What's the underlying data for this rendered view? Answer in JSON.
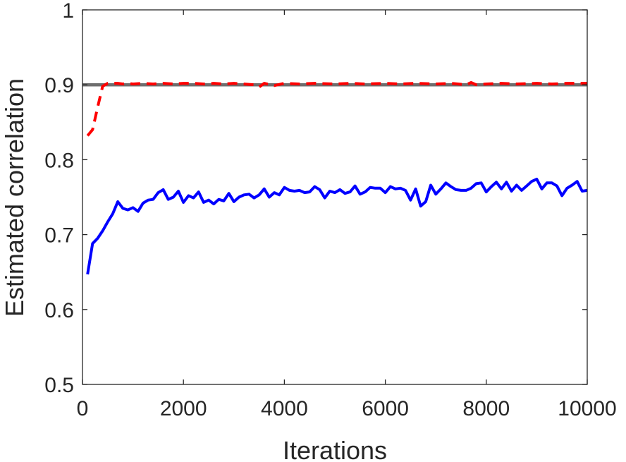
{
  "chart_data": {
    "type": "line",
    "title": "",
    "xlabel": "Iterations",
    "ylabel": "Estimated correlation",
    "xlim": [
      0,
      10000
    ],
    "ylim": [
      0.5,
      1.0
    ],
    "xticks": [
      0,
      2000,
      4000,
      6000,
      8000,
      10000
    ],
    "xtick_labels": [
      "0",
      "2000",
      "4000",
      "6000",
      "8000",
      "10000"
    ],
    "yticks": [
      0.5,
      0.6,
      0.7,
      0.8,
      0.9,
      1.0
    ],
    "ytick_labels": [
      "0.5",
      "0.6",
      "0.7",
      "0.8",
      "0.9",
      "1"
    ],
    "grid": false,
    "reference_line": {
      "y": 0.9,
      "color": "#6e6e6e"
    },
    "series": [
      {
        "color": "#ff0000",
        "style": "dashed",
        "x": [
          100,
          200,
          300,
          400,
          500,
          600,
          700,
          800,
          900,
          1000,
          1200,
          1400,
          1600,
          1800,
          2000,
          2200,
          2400,
          2600,
          2800,
          3000,
          3200,
          3400,
          3500,
          3600,
          3800,
          4000,
          4300,
          4600,
          5000,
          5300,
          5600,
          6000,
          6300,
          6600,
          7000,
          7300,
          7600,
          7700,
          7800,
          8000,
          8300,
          8600,
          9000,
          9300,
          9600,
          10000
        ],
        "y": [
          0.832,
          0.84,
          0.87,
          0.898,
          0.902,
          0.902,
          0.902,
          0.901,
          0.902,
          0.901,
          0.902,
          0.901,
          0.902,
          0.901,
          0.902,
          0.902,
          0.901,
          0.902,
          0.901,
          0.902,
          0.901,
          0.9,
          0.897,
          0.902,
          0.899,
          0.902,
          0.901,
          0.902,
          0.901,
          0.902,
          0.901,
          0.902,
          0.901,
          0.902,
          0.901,
          0.902,
          0.9,
          0.903,
          0.9,
          0.901,
          0.902,
          0.901,
          0.902,
          0.901,
          0.902,
          0.902
        ]
      },
      {
        "color": "#0000ff",
        "style": "solid",
        "x": [
          100,
          200,
          300,
          400,
          500,
          600,
          700,
          800,
          900,
          1000,
          1100,
          1200,
          1300,
          1400,
          1500,
          1600,
          1700,
          1800,
          1900,
          2000,
          2100,
          2200,
          2300,
          2400,
          2500,
          2600,
          2700,
          2800,
          2900,
          3000,
          3100,
          3200,
          3300,
          3400,
          3500,
          3600,
          3700,
          3800,
          3900,
          4000,
          4100,
          4200,
          4300,
          4400,
          4500,
          4600,
          4700,
          4800,
          4900,
          5000,
          5100,
          5200,
          5300,
          5400,
          5500,
          5600,
          5700,
          5800,
          5900,
          6000,
          6100,
          6200,
          6300,
          6400,
          6500,
          6600,
          6700,
          6800,
          6900,
          7000,
          7100,
          7200,
          7300,
          7400,
          7500,
          7600,
          7700,
          7800,
          7900,
          8000,
          8100,
          8200,
          8300,
          8400,
          8500,
          8600,
          8700,
          8800,
          8900,
          9000,
          9100,
          9200,
          9300,
          9400,
          9500,
          9600,
          9700,
          9800,
          9900,
          10000
        ],
        "y": [
          0.647,
          0.688,
          0.695,
          0.705,
          0.717,
          0.728,
          0.744,
          0.735,
          0.733,
          0.736,
          0.731,
          0.742,
          0.746,
          0.747,
          0.756,
          0.76,
          0.747,
          0.75,
          0.758,
          0.743,
          0.752,
          0.749,
          0.757,
          0.743,
          0.746,
          0.741,
          0.747,
          0.745,
          0.755,
          0.744,
          0.75,
          0.753,
          0.754,
          0.749,
          0.753,
          0.761,
          0.75,
          0.756,
          0.753,
          0.763,
          0.759,
          0.758,
          0.759,
          0.756,
          0.757,
          0.764,
          0.76,
          0.749,
          0.758,
          0.756,
          0.76,
          0.755,
          0.757,
          0.765,
          0.754,
          0.757,
          0.763,
          0.762,
          0.762,
          0.756,
          0.764,
          0.761,
          0.762,
          0.759,
          0.746,
          0.761,
          0.738,
          0.744,
          0.766,
          0.754,
          0.761,
          0.769,
          0.764,
          0.76,
          0.759,
          0.759,
          0.762,
          0.768,
          0.769,
          0.757,
          0.764,
          0.77,
          0.761,
          0.77,
          0.758,
          0.766,
          0.759,
          0.765,
          0.771,
          0.774,
          0.761,
          0.769,
          0.769,
          0.765,
          0.752,
          0.762,
          0.766,
          0.771,
          0.758,
          0.759
        ]
      }
    ]
  }
}
